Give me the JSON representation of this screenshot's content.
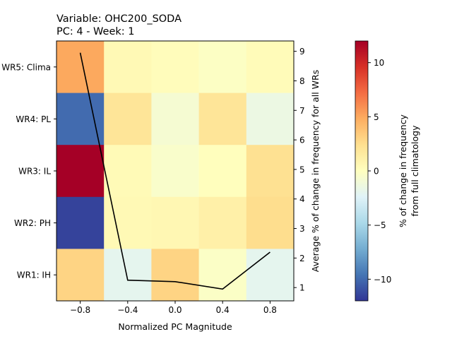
{
  "chart_data": {
    "type": "heatmap",
    "title_line1": "Variable: OHC200_SODA",
    "title_line2": "PC: 4 - Week: 1",
    "xlabel": "Normalized PC Magnitude",
    "y2label": "Average % of change in frequency for all WRs",
    "colorbar_label_line1": "% of change in frequency",
    "colorbar_label_line2": "from full climatology",
    "x_bin_centers": [
      -0.8,
      -0.4,
      0.0,
      0.4,
      0.8
    ],
    "x_range": [
      -1.0,
      1.0
    ],
    "x_ticks": [
      {
        "value": -0.8,
        "label": "−0.8"
      },
      {
        "value": -0.4,
        "label": "−0.4"
      },
      {
        "value": 0.0,
        "label": "0.0"
      },
      {
        "value": 0.4,
        "label": "0.4"
      },
      {
        "value": 0.8,
        "label": "0.8"
      }
    ],
    "rows": [
      "WR5: Clima",
      "WR4: PL",
      "WR3: IL",
      "WR2: PH",
      "WR1: IH"
    ],
    "values": [
      [
        5,
        0.5,
        0.2,
        -0.2,
        0.3
      ],
      [
        -10,
        2,
        -0.8,
        2,
        -1.5
      ],
      [
        12,
        0.4,
        -0.5,
        0.1,
        2.3
      ],
      [
        -11.5,
        0.5,
        0.6,
        1.2,
        2.5
      ],
      [
        3,
        -2,
        3,
        -0.3,
        -2
      ]
    ],
    "color_range": [
      -12,
      12
    ],
    "colorbar_ticks": [
      {
        "value": 10,
        "label": "10"
      },
      {
        "value": 5,
        "label": "5"
      },
      {
        "value": 0,
        "label": "0"
      },
      {
        "value": -5,
        "label": "−5"
      },
      {
        "value": -10,
        "label": "−10"
      }
    ],
    "line_series": {
      "x": [
        -0.8,
        -0.4,
        0.0,
        0.4,
        0.8
      ],
      "y": [
        8.95,
        1.25,
        1.2,
        0.95,
        2.2
      ]
    },
    "y2_range": [
      0.55,
      9.35
    ],
    "y2_ticks": [
      {
        "value": 1,
        "label": "1"
      },
      {
        "value": 2,
        "label": "2"
      },
      {
        "value": 3,
        "label": "3"
      },
      {
        "value": 4,
        "label": "4"
      },
      {
        "value": 5,
        "label": "5"
      },
      {
        "value": 6,
        "label": "6"
      },
      {
        "value": 7,
        "label": "7"
      },
      {
        "value": 8,
        "label": "8"
      },
      {
        "value": 9,
        "label": "9"
      }
    ],
    "colormap": "RdYlBu_r",
    "line_color": "#000000"
  }
}
